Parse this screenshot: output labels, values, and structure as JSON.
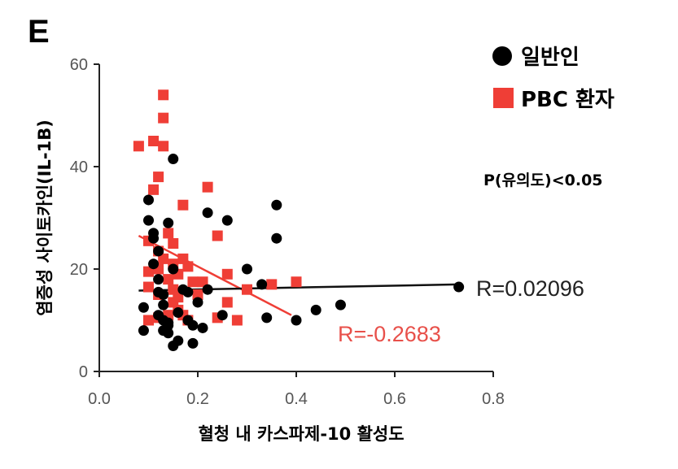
{
  "panel_label": "E",
  "chart_data": {
    "type": "scatter",
    "title": "",
    "xlabel": "혈청 내 카스파제-10 활성도",
    "ylabel": "염증성 사이토카인(IL-1B)",
    "xlim": [
      0.0,
      0.8
    ],
    "ylim": [
      0,
      60
    ],
    "x_ticks": [
      "0.0",
      "0.2",
      "0.4",
      "0.6",
      "0.8"
    ],
    "y_ticks": [
      "0",
      "20",
      "40",
      "60"
    ],
    "legend_position": "top-right",
    "p_value_text": "P(유의도)<0.05",
    "series": [
      {
        "name": "일반인",
        "marker": "circle",
        "color": "#000000",
        "r_text": "R=0.02096",
        "trend": {
          "x": [
            0.08,
            0.73
          ],
          "y": [
            15.8,
            17.0
          ]
        },
        "points": [
          [
            0.09,
            8
          ],
          [
            0.09,
            12.5
          ],
          [
            0.1,
            29.5
          ],
          [
            0.1,
            33.5
          ],
          [
            0.11,
            21
          ],
          [
            0.11,
            26
          ],
          [
            0.12,
            15.5
          ],
          [
            0.12,
            23.5
          ],
          [
            0.12,
            11
          ],
          [
            0.13,
            8
          ],
          [
            0.13,
            10
          ],
          [
            0.13,
            13
          ],
          [
            0.13,
            15
          ],
          [
            0.14,
            7.5
          ],
          [
            0.14,
            9.5
          ],
          [
            0.14,
            29
          ],
          [
            0.15,
            41.5
          ],
          [
            0.15,
            20
          ],
          [
            0.15,
            5
          ],
          [
            0.16,
            6
          ],
          [
            0.16,
            11.5
          ],
          [
            0.17,
            16
          ],
          [
            0.18,
            15.5
          ],
          [
            0.18,
            10
          ],
          [
            0.19,
            5.5
          ],
          [
            0.19,
            9
          ],
          [
            0.2,
            13.5
          ],
          [
            0.21,
            8.5
          ],
          [
            0.22,
            31
          ],
          [
            0.22,
            16
          ],
          [
            0.25,
            11
          ],
          [
            0.26,
            29.5
          ],
          [
            0.3,
            20
          ],
          [
            0.33,
            17
          ],
          [
            0.34,
            10.5
          ],
          [
            0.36,
            32.5
          ],
          [
            0.36,
            26
          ],
          [
            0.4,
            10
          ],
          [
            0.44,
            12
          ],
          [
            0.49,
            13
          ],
          [
            0.73,
            16.5
          ],
          [
            0.11,
            27
          ],
          [
            0.12,
            18
          ],
          [
            0.14,
            9
          ]
        ]
      },
      {
        "name": "PBC 환자",
        "marker": "square",
        "color": "#ef3e36",
        "r_text": "R=-0.2683",
        "trend": {
          "x": [
            0.08,
            0.39
          ],
          "y": [
            26.5,
            11.0
          ]
        },
        "points": [
          [
            0.08,
            44
          ],
          [
            0.1,
            25.5
          ],
          [
            0.1,
            19.5
          ],
          [
            0.1,
            16.5
          ],
          [
            0.1,
            10
          ],
          [
            0.11,
            45
          ],
          [
            0.11,
            35.5
          ],
          [
            0.12,
            23.5
          ],
          [
            0.12,
            20
          ],
          [
            0.12,
            15
          ],
          [
            0.12,
            10.5
          ],
          [
            0.12,
            38
          ],
          [
            0.13,
            44
          ],
          [
            0.13,
            49.5
          ],
          [
            0.13,
            54
          ],
          [
            0.13,
            22
          ],
          [
            0.14,
            18
          ],
          [
            0.14,
            11
          ],
          [
            0.15,
            25
          ],
          [
            0.15,
            21
          ],
          [
            0.15,
            16
          ],
          [
            0.15,
            13.5
          ],
          [
            0.16,
            19
          ],
          [
            0.16,
            14.5
          ],
          [
            0.16,
            12
          ],
          [
            0.17,
            32.5
          ],
          [
            0.17,
            22
          ],
          [
            0.18,
            10
          ],
          [
            0.18,
            20.5
          ],
          [
            0.19,
            17.5
          ],
          [
            0.2,
            15
          ],
          [
            0.21,
            17.5
          ],
          [
            0.22,
            36
          ],
          [
            0.24,
            26.5
          ],
          [
            0.24,
            10.5
          ],
          [
            0.26,
            19
          ],
          [
            0.26,
            13.5
          ],
          [
            0.28,
            10
          ],
          [
            0.3,
            16
          ],
          [
            0.35,
            17
          ],
          [
            0.4,
            17.5
          ],
          [
            0.14,
            27
          ],
          [
            0.17,
            11
          ]
        ]
      }
    ]
  }
}
